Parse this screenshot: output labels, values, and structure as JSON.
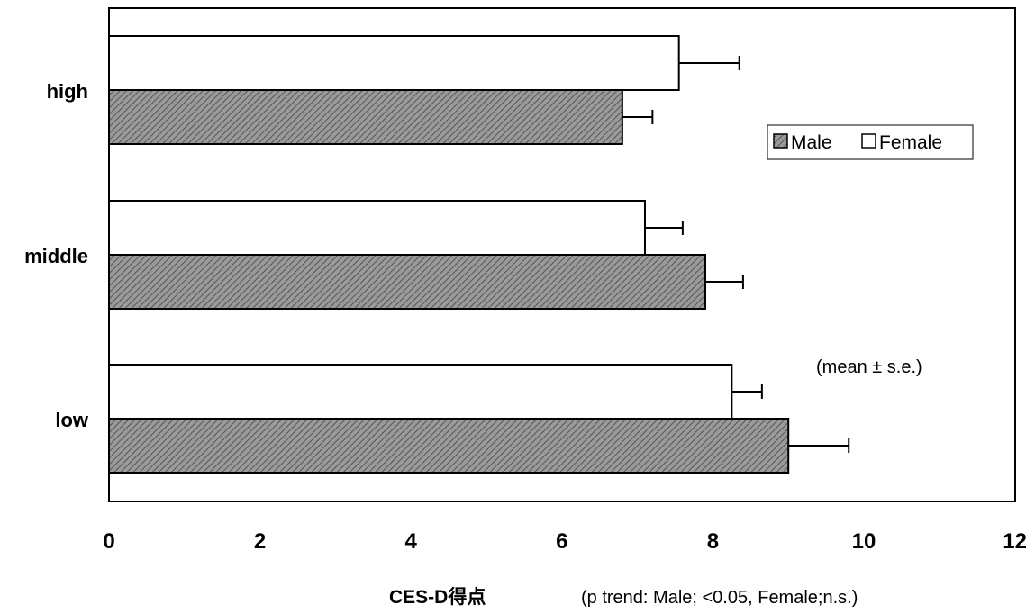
{
  "chart_data": {
    "type": "bar",
    "orientation": "horizontal",
    "categories": [
      "high",
      "middle",
      "low"
    ],
    "series": [
      {
        "name": "Male",
        "values": [
          6.8,
          7.9,
          9.0
        ],
        "errors": [
          0.4,
          0.5,
          0.8
        ],
        "color": "#8c8c8c",
        "pattern": "diagonal-hatch"
      },
      {
        "name": "Female",
        "values": [
          7.55,
          7.1,
          8.25
        ],
        "errors": [
          0.8,
          0.5,
          0.4
        ],
        "color": "#ffffff"
      }
    ],
    "xlabel": "CES-D得点",
    "xlabel_note": "(p trend: Male; <0.05, Female;n.s.)",
    "xlim": [
      0,
      12
    ],
    "xticks": [
      "0",
      "2",
      "4",
      "6",
      "8",
      "10",
      "12"
    ],
    "annotation": "(mean ± s.e.)",
    "legend": [
      "Male",
      "Female"
    ],
    "legend_placement": "top-right",
    "grid": false
  }
}
